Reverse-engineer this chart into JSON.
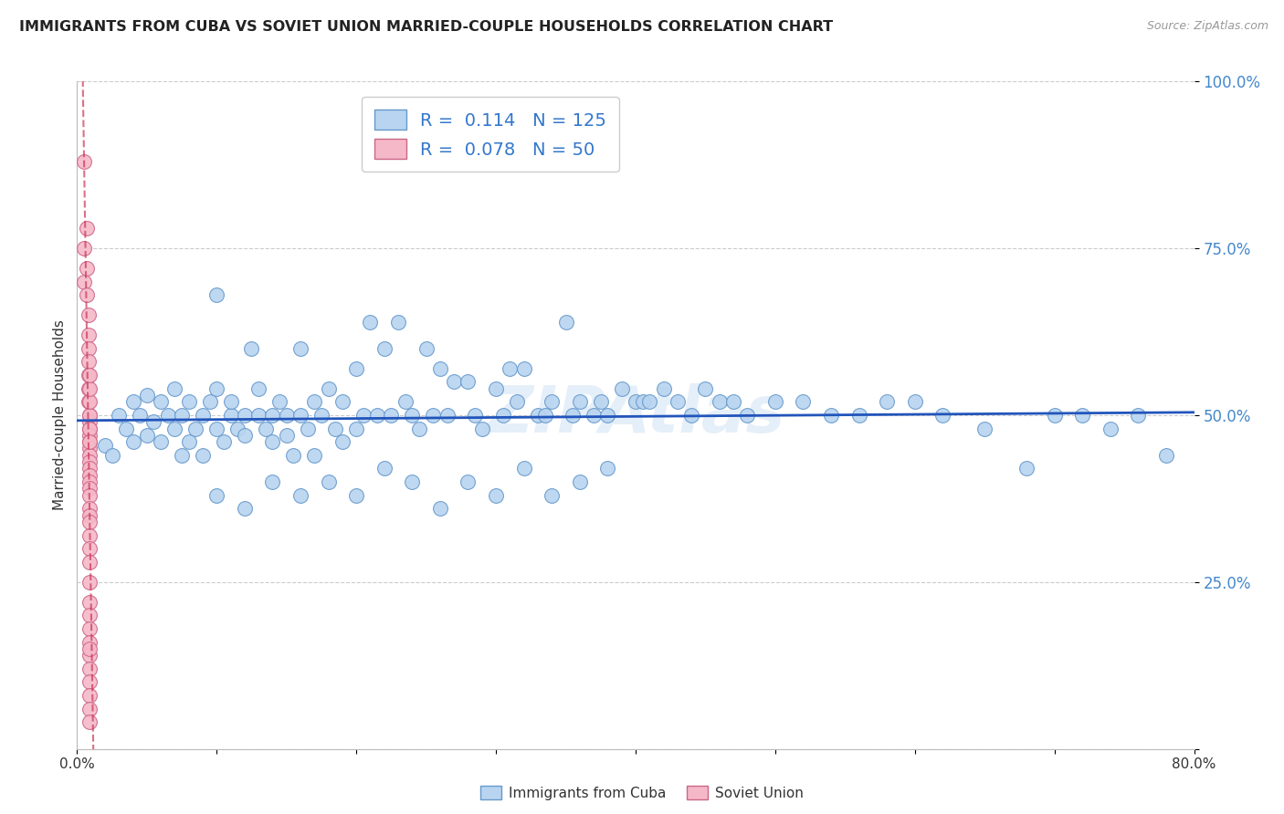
{
  "title": "IMMIGRANTS FROM CUBA VS SOVIET UNION MARRIED-COUPLE HOUSEHOLDS CORRELATION CHART",
  "source": "Source: ZipAtlas.com",
  "ylabel": "Married-couple Households",
  "x_min": 0.0,
  "x_max": 0.8,
  "y_min": 0.0,
  "y_max": 1.0,
  "grid_color": "#cccccc",
  "background_color": "#ffffff",
  "cuba_color": "#b8d4f0",
  "cuba_edge_color": "#6699cc",
  "soviet_color": "#f5b8c8",
  "soviet_edge_color": "#cc6688",
  "cuba_R": 0.114,
  "cuba_N": 125,
  "soviet_R": 0.078,
  "soviet_N": 50,
  "regression_line_color_cuba": "#2255bb",
  "regression_line_color_soviet": "#cc3355",
  "watermark": "ZIPAtlas",
  "legend_label_cuba": "Immigrants from Cuba",
  "legend_label_soviet": "Soviet Union",
  "cuba_scatter_x": [
    0.02,
    0.025,
    0.03,
    0.035,
    0.04,
    0.04,
    0.045,
    0.05,
    0.05,
    0.055,
    0.06,
    0.06,
    0.065,
    0.07,
    0.07,
    0.075,
    0.075,
    0.08,
    0.08,
    0.085,
    0.09,
    0.09,
    0.095,
    0.1,
    0.1,
    0.1,
    0.105,
    0.11,
    0.11,
    0.115,
    0.12,
    0.12,
    0.125,
    0.13,
    0.13,
    0.135,
    0.14,
    0.14,
    0.145,
    0.15,
    0.15,
    0.155,
    0.16,
    0.16,
    0.165,
    0.17,
    0.17,
    0.175,
    0.18,
    0.185,
    0.19,
    0.19,
    0.2,
    0.2,
    0.205,
    0.21,
    0.215,
    0.22,
    0.225,
    0.23,
    0.235,
    0.24,
    0.245,
    0.25,
    0.255,
    0.26,
    0.265,
    0.27,
    0.28,
    0.285,
    0.29,
    0.3,
    0.305,
    0.31,
    0.315,
    0.32,
    0.33,
    0.335,
    0.34,
    0.35,
    0.355,
    0.36,
    0.37,
    0.375,
    0.38,
    0.39,
    0.4,
    0.405,
    0.41,
    0.42,
    0.43,
    0.44,
    0.45,
    0.46,
    0.47,
    0.48,
    0.5,
    0.52,
    0.54,
    0.56,
    0.58,
    0.6,
    0.62,
    0.65,
    0.68,
    0.7,
    0.72,
    0.74,
    0.76,
    0.78,
    0.1,
    0.12,
    0.14,
    0.16,
    0.18,
    0.2,
    0.22,
    0.24,
    0.26,
    0.28,
    0.3,
    0.32,
    0.34,
    0.36,
    0.38
  ],
  "cuba_scatter_y": [
    0.455,
    0.44,
    0.5,
    0.48,
    0.52,
    0.46,
    0.5,
    0.47,
    0.53,
    0.49,
    0.52,
    0.46,
    0.5,
    0.48,
    0.54,
    0.5,
    0.44,
    0.46,
    0.52,
    0.48,
    0.5,
    0.44,
    0.52,
    0.68,
    0.54,
    0.48,
    0.46,
    0.5,
    0.52,
    0.48,
    0.5,
    0.47,
    0.6,
    0.5,
    0.54,
    0.48,
    0.5,
    0.46,
    0.52,
    0.47,
    0.5,
    0.44,
    0.6,
    0.5,
    0.48,
    0.52,
    0.44,
    0.5,
    0.54,
    0.48,
    0.52,
    0.46,
    0.57,
    0.48,
    0.5,
    0.64,
    0.5,
    0.6,
    0.5,
    0.64,
    0.52,
    0.5,
    0.48,
    0.6,
    0.5,
    0.57,
    0.5,
    0.55,
    0.55,
    0.5,
    0.48,
    0.54,
    0.5,
    0.57,
    0.52,
    0.57,
    0.5,
    0.5,
    0.52,
    0.64,
    0.5,
    0.52,
    0.5,
    0.52,
    0.5,
    0.54,
    0.52,
    0.52,
    0.52,
    0.54,
    0.52,
    0.5,
    0.54,
    0.52,
    0.52,
    0.5,
    0.52,
    0.52,
    0.5,
    0.5,
    0.52,
    0.52,
    0.5,
    0.48,
    0.42,
    0.5,
    0.5,
    0.48,
    0.5,
    0.44,
    0.38,
    0.36,
    0.4,
    0.38,
    0.4,
    0.38,
    0.42,
    0.4,
    0.36,
    0.4,
    0.38,
    0.42,
    0.38,
    0.4,
    0.42
  ],
  "soviet_scatter_x": [
    0.005,
    0.005,
    0.005,
    0.007,
    0.007,
    0.007,
    0.008,
    0.008,
    0.008,
    0.008,
    0.008,
    0.008,
    0.008,
    0.009,
    0.009,
    0.009,
    0.009,
    0.009,
    0.009,
    0.009,
    0.009,
    0.009,
    0.009,
    0.009,
    0.009,
    0.009,
    0.009,
    0.009,
    0.009,
    0.009,
    0.009,
    0.009,
    0.009,
    0.009,
    0.009,
    0.009,
    0.009,
    0.009,
    0.009,
    0.009,
    0.009,
    0.009,
    0.009,
    0.009,
    0.009,
    0.009,
    0.009,
    0.009,
    0.009,
    0.009
  ],
  "soviet_scatter_y": [
    0.88,
    0.75,
    0.7,
    0.78,
    0.72,
    0.68,
    0.65,
    0.62,
    0.6,
    0.58,
    0.56,
    0.54,
    0.52,
    0.5,
    0.49,
    0.48,
    0.47,
    0.46,
    0.45,
    0.44,
    0.43,
    0.42,
    0.41,
    0.4,
    0.39,
    0.38,
    0.36,
    0.35,
    0.34,
    0.32,
    0.3,
    0.28,
    0.25,
    0.22,
    0.2,
    0.18,
    0.16,
    0.14,
    0.12,
    0.1,
    0.08,
    0.06,
    0.04,
    0.5,
    0.52,
    0.54,
    0.56,
    0.48,
    0.46,
    0.15
  ]
}
